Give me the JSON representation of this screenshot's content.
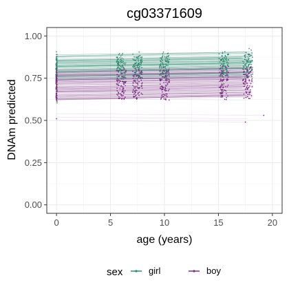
{
  "chart_data": {
    "type": "line",
    "title": "cg03371609",
    "xlabel": "age (years)",
    "ylabel": "DNAm predicted",
    "xlim": [
      -0.9,
      20.9
    ],
    "ylim": [
      -0.05,
      1.05
    ],
    "x_ticks": [
      0,
      5,
      10,
      15,
      20
    ],
    "x_tick_labels": [
      "0",
      "5",
      "10",
      "15",
      "20"
    ],
    "y_ticks": [
      0.0,
      0.25,
      0.5,
      0.75,
      1.0
    ],
    "y_tick_labels": [
      "0.00",
      "0.25",
      "0.50",
      "0.75",
      "1.00"
    ],
    "grid": true,
    "measurement_ages": [
      0,
      6,
      7.5,
      10,
      15.5,
      17.7
    ],
    "series": [
      {
        "name": "girl",
        "color": "#2e8b6e",
        "start_range": [
          0.74,
          0.89
        ],
        "end_range": [
          0.76,
          0.91
        ],
        "outliers": [
          [
            0,
            0.66
          ],
          [
            0,
            0.62
          ]
        ]
      },
      {
        "name": "boy",
        "color": "#7a2d82",
        "start_range": [
          0.62,
          0.8
        ],
        "end_range": [
          0.64,
          0.82
        ],
        "outliers": [
          [
            0,
            0.51
          ],
          [
            17.5,
            0.49
          ],
          [
            19.2,
            0.53
          ]
        ]
      }
    ],
    "legend": {
      "title": "sex",
      "position": "bottom"
    }
  }
}
